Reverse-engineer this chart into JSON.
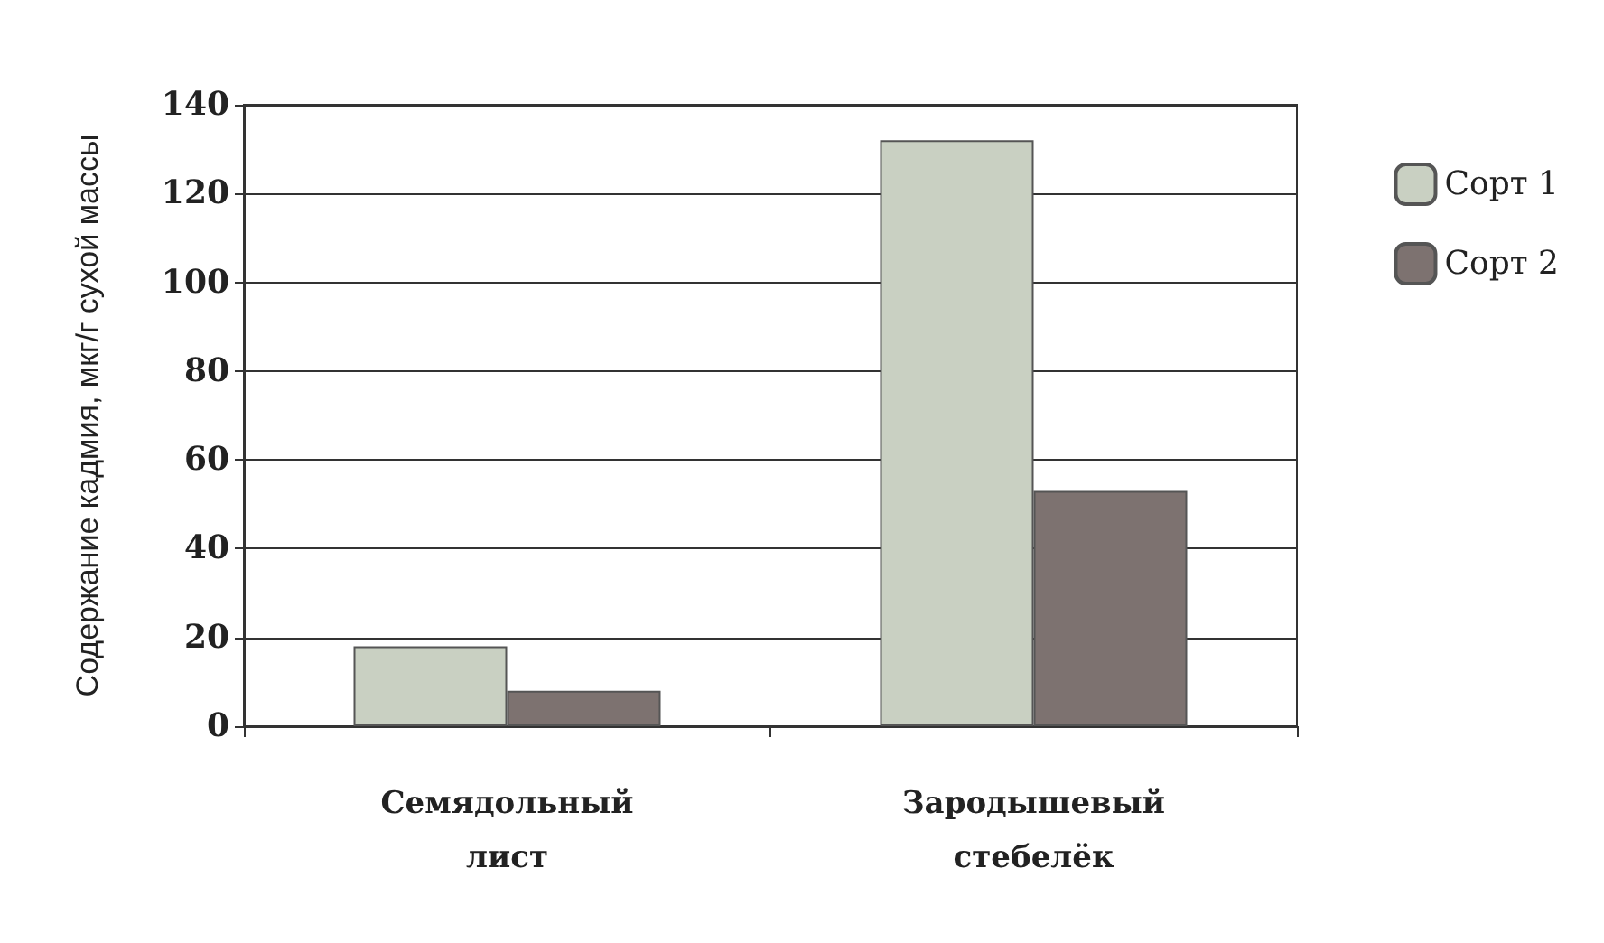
{
  "chart_data": {
    "type": "bar",
    "ylabel": "Содержание кадмия, мкг/г сухой массы",
    "categories": [
      "Семядольный\nлист",
      "Зародышевый\nстебелёк"
    ],
    "series": [
      {
        "name": "Сорт 1",
        "color": "#c9d0c2",
        "values": [
          18,
          132
        ]
      },
      {
        "name": "Сорт 2",
        "color": "#7d7270",
        "values": [
          8,
          53
        ]
      }
    ],
    "ylim": [
      0,
      140
    ],
    "yticks": [
      0,
      20,
      40,
      60,
      80,
      100,
      120,
      140
    ],
    "grid": "y",
    "legend": "right"
  }
}
